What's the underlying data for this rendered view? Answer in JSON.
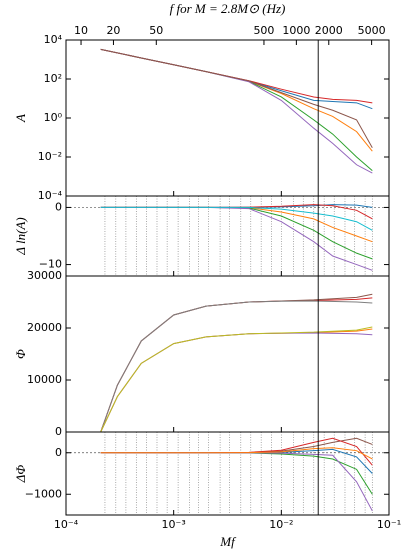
{
  "chart_data": [
    {
      "type": "line",
      "ylabel": "A",
      "ylog": true,
      "xlog": true,
      "xlim": [
        0.0001,
        0.1
      ],
      "ylim": [
        0.0001,
        10000
      ],
      "yticks": [
        {
          "value": 10000,
          "label": "10⁴"
        },
        {
          "value": 100,
          "label": "10²"
        },
        {
          "value": 1,
          "label": "10⁰"
        },
        {
          "value": 0.01,
          "label": "10⁻²"
        },
        {
          "value": 0.0001,
          "label": "10⁻⁴"
        }
      ],
      "x2label": "f for M = 2.8M⊙ (Hz)",
      "x2lim": [
        7.25,
        7252
      ],
      "x2ticks": [
        10,
        20,
        50,
        500,
        1000,
        2000,
        5000
      ],
      "vline": 0.022,
      "x": [
        0.00021,
        0.0005,
        0.001,
        0.002,
        0.005,
        0.01,
        0.02,
        0.03,
        0.05,
        0.07
      ],
      "series": [
        {
          "color": "#1f77b4",
          "values": [
            3300,
            1200,
            540,
            240,
            80,
            25,
            8,
            7,
            6,
            3
          ]
        },
        {
          "color": "#ff7f0e",
          "values": [
            3300,
            1200,
            540,
            240,
            78,
            18,
            3,
            1.2,
            0.2,
            0.02
          ]
        },
        {
          "color": "#2ca02c",
          "values": [
            3300,
            1200,
            540,
            240,
            75,
            12,
            0.8,
            0.15,
            0.01,
            0.002
          ]
        },
        {
          "color": "#d62728",
          "values": [
            3300,
            1200,
            540,
            240,
            82,
            30,
            12,
            9,
            8,
            6
          ]
        },
        {
          "color": "#9467bd",
          "values": [
            3300,
            1200,
            540,
            240,
            72,
            8,
            0.3,
            0.05,
            0.004,
            0.0015
          ]
        },
        {
          "color": "#8c564b",
          "values": [
            3300,
            1200,
            540,
            240,
            79,
            20,
            5,
            2.5,
            0.8,
            0.03
          ]
        }
      ]
    },
    {
      "type": "line",
      "ylabel": "Δ ln(A)",
      "xlog": true,
      "xlim": [
        0.0001,
        0.1
      ],
      "ylim": [
        -12,
        2
      ],
      "yticks": [
        0,
        {
          "value": -10,
          "label": "−10"
        }
      ],
      "vline": 0.022,
      "hline": 0,
      "nodes": [
        0.00023,
        0.00029,
        0.00036,
        0.00045,
        0.00056,
        0.0007,
        0.00087,
        0.0011,
        0.0014,
        0.0017,
        0.0021,
        0.0027,
        0.0033,
        0.0042,
        0.0052,
        0.0065,
        0.0081,
        0.01,
        0.013,
        0.016,
        0.02,
        0.025,
        0.031,
        0.039,
        0.048,
        0.06,
        0.07
      ],
      "x": [
        0.00021,
        0.0005,
        0.001,
        0.002,
        0.005,
        0.01,
        0.02,
        0.03,
        0.05,
        0.07
      ],
      "series": [
        {
          "color": "#1f77b4",
          "values": [
            0,
            0,
            0,
            0,
            0,
            0.1,
            0.3,
            0.5,
            0.4,
            0
          ]
        },
        {
          "color": "#ff7f0e",
          "values": [
            0,
            0,
            0,
            0,
            -0.05,
            -0.8,
            -2,
            -3.5,
            -5,
            -6
          ]
        },
        {
          "color": "#2ca02c",
          "values": [
            0,
            0,
            0,
            0,
            -0.1,
            -1.5,
            -4,
            -6,
            -8,
            -9
          ]
        },
        {
          "color": "#d62728",
          "values": [
            0,
            0,
            0,
            0,
            0.05,
            0.2,
            0.5,
            0.3,
            -0.5,
            -2
          ]
        },
        {
          "color": "#9467bd",
          "values": [
            0,
            0,
            0,
            0,
            -0.2,
            -2.5,
            -6,
            -8.5,
            -10,
            -11
          ]
        },
        {
          "color": "#17becf",
          "values": [
            0,
            0,
            0,
            0,
            0,
            -0.3,
            -1,
            -1.5,
            -2.5,
            -4
          ]
        }
      ]
    },
    {
      "type": "line",
      "ylabel": "Φ",
      "xlog": true,
      "xlim": [
        0.0001,
        0.1
      ],
      "ylim": [
        0,
        30000
      ],
      "yticks": [
        0,
        10000,
        20000,
        30000
      ],
      "vline": 0.022,
      "x": [
        0.00021,
        0.0003,
        0.0005,
        0.001,
        0.002,
        0.005,
        0.01,
        0.02,
        0.05,
        0.07
      ],
      "series": [
        {
          "color": "#d62728",
          "values": [
            0,
            9000,
            17500,
            22500,
            24200,
            25000,
            25200,
            25300,
            25500,
            25800
          ]
        },
        {
          "color": "#8c564b",
          "values": [
            0,
            9000,
            17500,
            22500,
            24200,
            25000,
            25200,
            25400,
            25900,
            26500
          ]
        },
        {
          "color": "#7f7f7f",
          "values": [
            0,
            9000,
            17500,
            22500,
            24200,
            25000,
            25150,
            25200,
            25000,
            24800
          ]
        },
        {
          "color": "#ff7f0e",
          "values": [
            0,
            6800,
            13200,
            17000,
            18300,
            18900,
            19000,
            19100,
            19400,
            19800
          ]
        },
        {
          "color": "#9467bd",
          "values": [
            0,
            6800,
            13200,
            17000,
            18300,
            18900,
            19000,
            19050,
            18900,
            18700
          ]
        },
        {
          "color": "#bcbd22",
          "values": [
            0,
            6800,
            13200,
            17000,
            18300,
            18900,
            19050,
            19200,
            19600,
            20200
          ]
        }
      ]
    },
    {
      "type": "line",
      "ylabel": "ΔΦ",
      "xlabel": "Mf",
      "xlog": true,
      "xlim": [
        0.0001,
        0.1
      ],
      "ylim": [
        -1500,
        500
      ],
      "yticks": [
        0,
        {
          "value": -1000,
          "label": "−1000"
        }
      ],
      "vline": 0.022,
      "hline": 0,
      "xticks": [
        {
          "value": 0.0001,
          "label": "10⁻⁴"
        },
        {
          "value": 0.001,
          "label": "10⁻³"
        },
        {
          "value": 0.01,
          "label": "10⁻²"
        },
        {
          "value": 0.1,
          "label": "10⁻¹"
        }
      ],
      "nodes": [
        0.00023,
        0.00029,
        0.00036,
        0.00045,
        0.00056,
        0.0007,
        0.00087,
        0.0011,
        0.0014,
        0.0017,
        0.0021,
        0.0027,
        0.0033,
        0.0042,
        0.0052,
        0.0065,
        0.0081,
        0.01,
        0.013,
        0.016,
        0.02,
        0.025,
        0.031,
        0.039,
        0.048,
        0.06,
        0.07
      ],
      "x": [
        0.00021,
        0.0005,
        0.001,
        0.002,
        0.005,
        0.01,
        0.02,
        0.03,
        0.05,
        0.07
      ],
      "series": [
        {
          "color": "#8c564b",
          "values": [
            0,
            0,
            0,
            0,
            5,
            40,
            150,
            250,
            350,
            200
          ]
        },
        {
          "color": "#1f77b4",
          "values": [
            0,
            0,
            0,
            0,
            0,
            10,
            50,
            80,
            -100,
            -500
          ]
        },
        {
          "color": "#2ca02c",
          "values": [
            0,
            0,
            0,
            0,
            -5,
            -30,
            -80,
            -150,
            -400,
            -1000
          ]
        },
        {
          "color": "#d62728",
          "values": [
            0,
            0,
            0,
            0,
            10,
            60,
            250,
            350,
            150,
            -300
          ]
        },
        {
          "color": "#9467bd",
          "values": [
            0,
            0,
            0,
            0,
            -2,
            -10,
            -40,
            -60,
            -700,
            -1400
          ]
        },
        {
          "color": "#ff7f0e",
          "values": [
            0,
            0,
            0,
            0,
            3,
            20,
            100,
            120,
            50,
            -150
          ]
        }
      ]
    }
  ]
}
